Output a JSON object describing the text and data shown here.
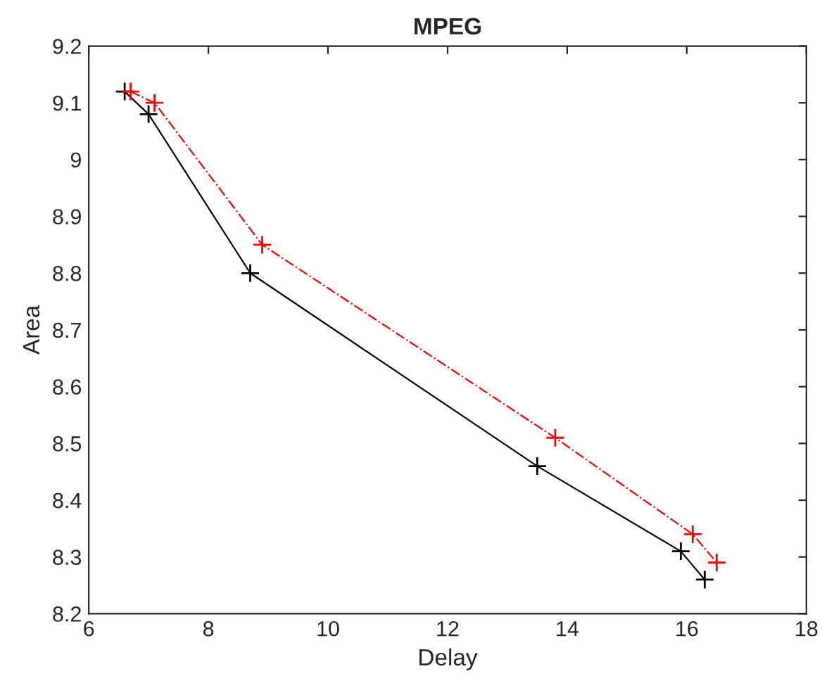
{
  "chart_data": {
    "type": "line",
    "title": "MPEG",
    "xlabel": "Delay",
    "ylabel": "Area",
    "xlim": [
      6,
      18
    ],
    "xticks": [
      6,
      8,
      10,
      12,
      14,
      16,
      18
    ],
    "ylim": [
      8.2,
      9.2
    ],
    "yticks": [
      8.2,
      8.3,
      8.4,
      8.5,
      8.6,
      8.7,
      8.8,
      8.9,
      9,
      9.1,
      9.2
    ],
    "grid": false,
    "legend": false,
    "marker": "cross",
    "series": [
      {
        "color": "#000000",
        "line_style": "solid",
        "x": [
          6.6,
          7.0,
          8.7,
          13.5,
          15.9,
          16.3
        ],
        "values": [
          9.12,
          9.08,
          8.8,
          8.46,
          8.31,
          8.26
        ]
      },
      {
        "color": "#ff0000",
        "line_style": "dashdot",
        "x": [
          6.7,
          7.1,
          8.9,
          13.8,
          16.1,
          16.5
        ],
        "values": [
          9.12,
          9.1,
          8.85,
          8.51,
          8.34,
          8.29
        ]
      }
    ]
  }
}
